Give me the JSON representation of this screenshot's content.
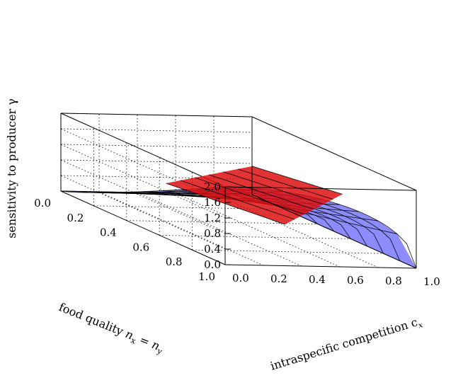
{
  "chart_data": {
    "type": "surface3d",
    "xlabel": "intraspecific competition c",
    "xlabel_sub": "x",
    "ylabel_parts": [
      "food quality ",
      "n",
      "x",
      " = ",
      "n",
      "y"
    ],
    "zlabel": "sensitivity to producer γ",
    "x_ticks": [
      "0.0",
      "0.2",
      "0.4",
      "0.6",
      "0.8",
      "1.0"
    ],
    "y_ticks": [
      "0.0",
      "0.2",
      "0.4",
      "0.6",
      "0.8",
      "1.0"
    ],
    "z_ticks": [
      "0.0",
      "0.4",
      "0.8",
      "1.2",
      "1.6",
      "2.0"
    ],
    "xlim": [
      0,
      1
    ],
    "ylim": [
      0,
      1
    ],
    "zlim": [
      0,
      2
    ],
    "grid": true,
    "surfaces": [
      {
        "color": "#6666ff",
        "description_of_shape": "blue boundary surface rising from z=0 at food quality 0 to z=2 at food quality 1, curved across competition"
      },
      {
        "color": "#dd1111",
        "description_of_shape": "red boundary surface near high competition"
      }
    ]
  }
}
